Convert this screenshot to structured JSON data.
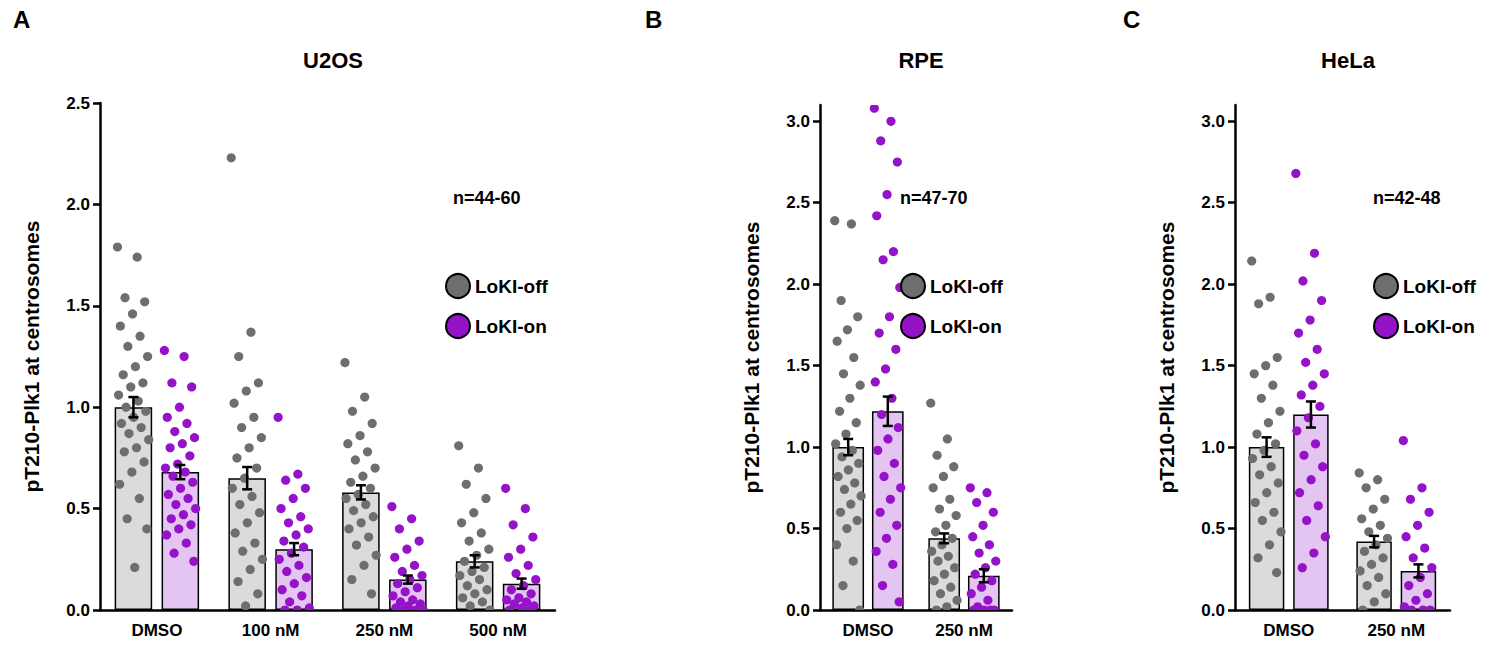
{
  "chart_data": [
    {
      "type": "bar",
      "panel_label": "A",
      "title": "U2OS",
      "y_label": "pT210-Plk1 at centrosomes",
      "annotation": "n=44-60",
      "categories": [
        "DMSO",
        "100 nM",
        "250 nM",
        "500 nM"
      ],
      "ylim": [
        0,
        2.5
      ],
      "yticks": [
        {
          "value": 0,
          "label": "0.0"
        },
        0.5,
        {
          "value": 1,
          "label": "1.0"
        },
        1.5,
        {
          "value": 2,
          "label": "2.0"
        },
        2.5
      ],
      "grid": false,
      "legend": "upper right",
      "series": [
        {
          "name": "LoKI-off",
          "color": "#6e6e6e",
          "values": [
            1.0,
            0.65,
            0.58,
            0.24
          ],
          "errors": [
            0.05,
            0.055,
            0.035,
            0.03
          ],
          "points": [
            [
              1.79,
              1.74,
              1.54,
              1.52,
              1.46,
              1.4,
              1.35,
              1.3,
              1.25,
              1.2,
              1.16,
              1.12,
              1.1,
              1.06,
              1.03,
              1.0,
              0.98,
              0.95,
              0.92,
              0.9,
              0.87,
              0.84,
              0.8,
              0.78,
              0.73,
              0.68,
              0.62,
              0.55,
              0.45,
              0.4,
              0.21
            ],
            [
              2.23,
              1.37,
              1.25,
              1.12,
              1.08,
              1.02,
              0.95,
              0.9,
              0.85,
              0.8,
              0.75,
              0.7,
              0.65,
              0.6,
              0.56,
              0.52,
              0.48,
              0.43,
              0.38,
              0.33,
              0.29,
              0.25,
              0.2,
              0.14,
              0.08,
              0.02
            ],
            [
              1.22,
              1.05,
              0.98,
              0.92,
              0.86,
              0.82,
              0.78,
              0.74,
              0.7,
              0.66,
              0.63,
              0.6,
              0.57,
              0.55,
              0.52,
              0.49,
              0.46,
              0.43,
              0.4,
              0.36,
              0.32,
              0.27,
              0.22,
              0.15,
              0.08
            ],
            [
              0.81,
              0.7,
              0.62,
              0.55,
              0.48,
              0.43,
              0.38,
              0.34,
              0.3,
              0.27,
              0.24,
              0.21,
              0.19,
              0.17,
              0.15,
              0.12,
              0.1,
              0.08,
              0.06,
              0.04,
              0.02,
              0.0
            ]
          ]
        },
        {
          "name": "LoKI-on",
          "color": "#9412c8",
          "values": [
            0.68,
            0.3,
            0.15,
            0.13
          ],
          "errors": [
            0.035,
            0.03,
            0.02,
            0.025
          ],
          "points": [
            [
              1.28,
              1.25,
              1.12,
              1.1,
              1.0,
              0.95,
              0.92,
              0.88,
              0.85,
              0.82,
              0.8,
              0.76,
              0.72,
              0.7,
              0.68,
              0.66,
              0.63,
              0.6,
              0.57,
              0.55,
              0.52,
              0.5,
              0.47,
              0.45,
              0.42,
              0.4,
              0.37,
              0.33,
              0.28,
              0.24
            ],
            [
              0.95,
              0.67,
              0.64,
              0.6,
              0.55,
              0.5,
              0.46,
              0.43,
              0.4,
              0.37,
              0.34,
              0.31,
              0.28,
              0.25,
              0.22,
              0.19,
              0.16,
              0.13,
              0.1,
              0.07,
              0.04,
              0.01,
              0.0,
              0.0
            ],
            [
              0.51,
              0.45,
              0.4,
              0.34,
              0.3,
              0.26,
              0.22,
              0.19,
              0.17,
              0.15,
              0.13,
              0.11,
              0.09,
              0.07,
              0.05,
              0.04,
              0.03,
              0.02,
              0.01,
              0.0,
              0.0,
              0.0
            ],
            [
              0.6,
              0.5,
              0.42,
              0.36,
              0.3,
              0.26,
              0.22,
              0.18,
              0.15,
              0.12,
              0.1,
              0.08,
              0.06,
              0.05,
              0.04,
              0.03,
              0.02,
              0.01,
              0.0,
              0.0
            ]
          ]
        }
      ]
    },
    {
      "type": "bar",
      "panel_label": "B",
      "title": "RPE",
      "y_label": "pT210-Plk1 at centrosomes",
      "annotation": "n=47-70",
      "categories": [
        "DMSO",
        "250 nM"
      ],
      "ylim": [
        0,
        3.1
      ],
      "yticks": [
        {
          "value": 0,
          "label": "0.0"
        },
        0.5,
        {
          "value": 1,
          "label": "1.0"
        },
        1.5,
        {
          "value": 2,
          "label": "2.0"
        },
        2.5,
        {
          "value": 3,
          "label": "3.0"
        }
      ],
      "grid": false,
      "legend": "upper right",
      "series": [
        {
          "name": "LoKI-off",
          "color": "#6e6e6e",
          "values": [
            1.0,
            0.44
          ],
          "errors": [
            0.05,
            0.03
          ],
          "points": [
            [
              2.39,
              2.37,
              1.9,
              1.8,
              1.72,
              1.65,
              1.55,
              1.45,
              1.38,
              1.3,
              1.22,
              1.15,
              1.08,
              1.02,
              0.98,
              0.94,
              0.9,
              0.86,
              0.82,
              0.78,
              0.74,
              0.7,
              0.65,
              0.6,
              0.55,
              0.5,
              0.4,
              0.3,
              0.15,
              0.0
            ],
            [
              1.27,
              1.05,
              0.95,
              0.88,
              0.82,
              0.75,
              0.68,
              0.62,
              0.58,
              0.52,
              0.48,
              0.44,
              0.4,
              0.36,
              0.33,
              0.3,
              0.26,
              0.22,
              0.18,
              0.14,
              0.1,
              0.06,
              0.02,
              0.0
            ]
          ]
        },
        {
          "name": "LoKI-on",
          "color": "#9412c8",
          "values": [
            1.22,
            0.21
          ],
          "errors": [
            0.09,
            0.04
          ],
          "points": [
            [
              3.08,
              3.0,
              2.88,
              2.75,
              2.55,
              2.42,
              2.2,
              2.15,
              1.98,
              1.8,
              1.7,
              1.6,
              1.48,
              1.4,
              1.3,
              1.2,
              1.12,
              1.05,
              0.98,
              0.9,
              0.82,
              0.75,
              0.68,
              0.6,
              0.52,
              0.44,
              0.36,
              0.28,
              0.15,
              0.05
            ],
            [
              0.75,
              0.72,
              0.66,
              0.6,
              0.52,
              0.45,
              0.4,
              0.35,
              0.3,
              0.26,
              0.22,
              0.18,
              0.14,
              0.1,
              0.06,
              0.02,
              0.0,
              0.0,
              0.0,
              0.0
            ]
          ]
        }
      ]
    },
    {
      "type": "bar",
      "panel_label": "C",
      "title": "HeLa",
      "y_label": "pT210-Plk1 at centrosomes",
      "annotation": "n=42-48",
      "categories": [
        "DMSO",
        "250 nM"
      ],
      "ylim": [
        0,
        3.1
      ],
      "yticks": [
        {
          "value": 0,
          "label": "0.0"
        },
        0.5,
        {
          "value": 1,
          "label": "1.0"
        },
        1.5,
        {
          "value": 2,
          "label": "2.0"
        },
        2.5,
        {
          "value": 3,
          "label": "3.0"
        }
      ],
      "grid": false,
      "legend": "upper right",
      "series": [
        {
          "name": "LoKI-off",
          "color": "#6e6e6e",
          "values": [
            1.0,
            0.42
          ],
          "errors": [
            0.06,
            0.035
          ],
          "points": [
            [
              2.15,
              1.92,
              1.88,
              1.55,
              1.5,
              1.45,
              1.38,
              1.3,
              1.22,
              1.15,
              1.08,
              1.02,
              0.98,
              0.93,
              0.88,
              0.83,
              0.78,
              0.72,
              0.66,
              0.6,
              0.55,
              0.48,
              0.4,
              0.32,
              0.23
            ],
            [
              0.85,
              0.8,
              0.75,
              0.68,
              0.62,
              0.56,
              0.52,
              0.48,
              0.44,
              0.4,
              0.36,
              0.32,
              0.28,
              0.24,
              0.2,
              0.15,
              0.1,
              0.05,
              0.0
            ]
          ]
        },
        {
          "name": "LoKI-on",
          "color": "#9412c8",
          "values": [
            1.2,
            0.24
          ],
          "errors": [
            0.08,
            0.04
          ],
          "points": [
            [
              2.68,
              2.19,
              2.02,
              1.9,
              1.78,
              1.7,
              1.6,
              1.52,
              1.45,
              1.38,
              1.32,
              1.25,
              1.18,
              1.1,
              1.02,
              0.95,
              0.88,
              0.8,
              0.72,
              0.64,
              0.55,
              0.45,
              0.35,
              0.26
            ],
            [
              1.04,
              0.75,
              0.68,
              0.6,
              0.52,
              0.45,
              0.38,
              0.32,
              0.26,
              0.2,
              0.15,
              0.1,
              0.06,
              0.02,
              0.0,
              0.0,
              0.0
            ]
          ]
        }
      ]
    }
  ]
}
